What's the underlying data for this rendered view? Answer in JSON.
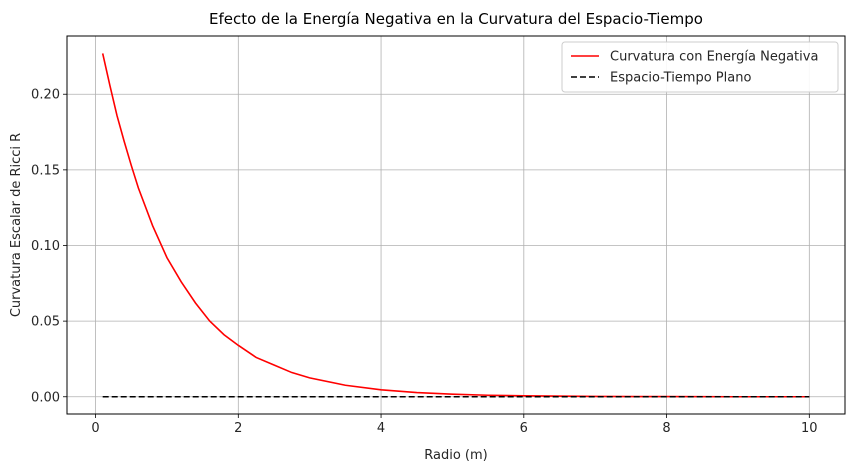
{
  "chart_data": {
    "type": "line",
    "title": "Efecto de la Energía Negativa en la Curvatura del Espacio-Tiempo",
    "xlabel": "Radio (m)",
    "ylabel": "Curvatura Escalar de Ricci R",
    "xlim": [
      -0.4,
      10.5
    ],
    "ylim": [
      -0.0114,
      0.2385
    ],
    "xticks": [
      0,
      2,
      4,
      6,
      8,
      10
    ],
    "xtick_labels": [
      "0",
      "2",
      "4",
      "6",
      "8",
      "10"
    ],
    "yticks": [
      0.0,
      0.05,
      0.1,
      0.15,
      0.2
    ],
    "ytick_labels": [
      "0.00",
      "0.05",
      "0.10",
      "0.15",
      "0.20"
    ],
    "grid": true,
    "legend_position": "top-right",
    "series": [
      {
        "name": "Curvatura con Energía Negativa",
        "color": "#ff0000",
        "style": "solid",
        "x": [
          0.1,
          0.2,
          0.3,
          0.4,
          0.5,
          0.6,
          0.8,
          1.0,
          1.2,
          1.4,
          1.6,
          1.8,
          2.0,
          2.25,
          2.5,
          2.75,
          3.0,
          3.5,
          4.0,
          4.5,
          5.0,
          5.5,
          6.0,
          7.0,
          8.0,
          9.0,
          10.0
        ],
        "y": [
          0.227,
          0.206,
          0.186,
          0.169,
          0.153,
          0.138,
          0.113,
          0.092,
          0.076,
          0.062,
          0.05,
          0.041,
          0.034,
          0.026,
          0.021,
          0.016,
          0.0125,
          0.0076,
          0.0046,
          0.0028,
          0.0017,
          0.001,
          0.0006,
          0.0002,
          0.0001,
          0.0,
          0.0
        ]
      },
      {
        "name": "Espacio-Tiempo Plano",
        "color": "#000000",
        "style": "dashed",
        "x": [
          0.1,
          10.0
        ],
        "y": [
          0.0,
          0.0
        ]
      }
    ]
  }
}
